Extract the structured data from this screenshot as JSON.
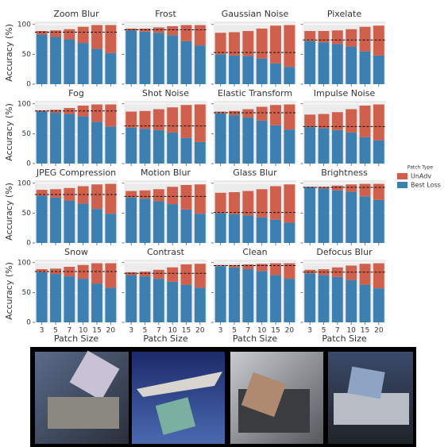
{
  "legend": {
    "title": "Patch Type"
  },
  "chart_data": [
    {
      "type": "bar",
      "title": "Zoom Blur",
      "y_label": "Accuracy (%)",
      "categories": [
        "3",
        "5",
        "7",
        "10",
        "15",
        "20"
      ],
      "series": [
        {
          "name": "Best Loss",
          "color": "#3b80b1",
          "values": [
            83,
            79,
            75,
            69,
            59,
            52
          ]
        },
        {
          "name": "UnAdv",
          "color": "#d0604b",
          "values": [
            6,
            11,
            17,
            27,
            40,
            47
          ]
        }
      ],
      "reference_line": 87,
      "ylim": [
        0,
        105
      ],
      "yticks": [
        0,
        50,
        100
      ]
    },
    {
      "type": "bar",
      "title": "Frost",
      "categories": [
        "3",
        "5",
        "7",
        "10",
        "15",
        "20"
      ],
      "series": [
        {
          "name": "Best Loss",
          "color": "#3b80b1",
          "values": [
            90,
            88,
            86,
            82,
            72,
            65
          ]
        },
        {
          "name": "UnAdv",
          "color": "#d0604b",
          "values": [
            3,
            5,
            9,
            15,
            27,
            34
          ]
        }
      ],
      "reference_line": 91,
      "ylim": [
        0,
        105
      ],
      "yticks": [
        0,
        50,
        100
      ]
    },
    {
      "type": "bar",
      "title": "Gaussian Noise",
      "categories": [
        "3",
        "5",
        "7",
        "10",
        "15",
        "20"
      ],
      "series": [
        {
          "name": "Best Loss",
          "color": "#3b80b1",
          "values": [
            50,
            48,
            47,
            43,
            35,
            29
          ]
        },
        {
          "name": "UnAdv",
          "color": "#d0604b",
          "values": [
            36,
            39,
            42,
            50,
            63,
            70
          ]
        }
      ],
      "reference_line": 53,
      "ylim": [
        0,
        105
      ],
      "yticks": [
        0,
        50,
        100
      ]
    },
    {
      "type": "bar",
      "title": "Pixelate",
      "categories": [
        "3",
        "5",
        "7",
        "10",
        "15",
        "20"
      ],
      "series": [
        {
          "name": "Best Loss",
          "color": "#3b80b1",
          "values": [
            72,
            70,
            67,
            63,
            55,
            48
          ]
        },
        {
          "name": "UnAdv",
          "color": "#d0604b",
          "values": [
            17,
            19,
            23,
            29,
            41,
            50
          ]
        }
      ],
      "reference_line": 74,
      "ylim": [
        0,
        105
      ],
      "yticks": [
        0,
        50,
        100
      ]
    },
    {
      "type": "bar",
      "title": "Fog",
      "y_label": "Accuracy (%)",
      "categories": [
        "3",
        "5",
        "7",
        "10",
        "15",
        "20"
      ],
      "series": [
        {
          "name": "Best Loss",
          "color": "#3b80b1",
          "values": [
            87,
            85,
            83,
            79,
            70,
            62
          ]
        },
        {
          "name": "UnAdv",
          "color": "#d0604b",
          "values": [
            2,
            5,
            10,
            18,
            29,
            37
          ]
        }
      ],
      "reference_line": 88,
      "ylim": [
        0,
        105
      ],
      "yticks": [
        0,
        50,
        100
      ]
    },
    {
      "type": "bar",
      "title": "Shot Noise",
      "categories": [
        "3",
        "5",
        "7",
        "10",
        "15",
        "20"
      ],
      "series": [
        {
          "name": "Best Loss",
          "color": "#3b80b1",
          "values": [
            60,
            58,
            56,
            52,
            43,
            36
          ]
        },
        {
          "name": "UnAdv",
          "color": "#d0604b",
          "values": [
            27,
            30,
            35,
            42,
            55,
            63
          ]
        }
      ],
      "reference_line": 63,
      "ylim": [
        0,
        105
      ],
      "yticks": [
        0,
        50,
        100
      ]
    },
    {
      "type": "bar",
      "title": "Elastic Transform",
      "categories": [
        "3",
        "5",
        "7",
        "10",
        "15",
        "20"
      ],
      "series": [
        {
          "name": "Best Loss",
          "color": "#3b80b1",
          "values": [
            84,
            81,
            77,
            72,
            64,
            57
          ]
        },
        {
          "name": "UnAdv",
          "color": "#d0604b",
          "values": [
            3,
            7,
            14,
            23,
            34,
            42
          ]
        }
      ],
      "reference_line": 85,
      "ylim": [
        0,
        105
      ],
      "yticks": [
        0,
        50,
        100
      ]
    },
    {
      "type": "bar",
      "title": "Impulse Noise",
      "categories": [
        "3",
        "5",
        "7",
        "10",
        "15",
        "20"
      ],
      "series": [
        {
          "name": "Best Loss",
          "color": "#3b80b1",
          "values": [
            61,
            59,
            56,
            52,
            44,
            39
          ]
        },
        {
          "name": "UnAdv",
          "color": "#d0604b",
          "values": [
            21,
            24,
            30,
            39,
            53,
            60
          ]
        }
      ],
      "reference_line": 62,
      "ylim": [
        0,
        105
      ],
      "yticks": [
        0,
        50,
        100
      ]
    },
    {
      "type": "bar",
      "title": "JPEG Compression",
      "y_label": "Accuracy (%)",
      "categories": [
        "3",
        "5",
        "7",
        "10",
        "15",
        "20"
      ],
      "series": [
        {
          "name": "Best Loss",
          "color": "#3b80b1",
          "values": [
            79,
            76,
            71,
            66,
            57,
            49
          ]
        },
        {
          "name": "UnAdv",
          "color": "#d0604b",
          "values": [
            10,
            14,
            21,
            29,
            41,
            50
          ]
        }
      ],
      "reference_line": 81,
      "ylim": [
        0,
        105
      ],
      "yticks": [
        0,
        50,
        100
      ]
    },
    {
      "type": "bar",
      "title": "Motion Blur",
      "categories": [
        "3",
        "5",
        "7",
        "10",
        "15",
        "20"
      ],
      "series": [
        {
          "name": "Best Loss",
          "color": "#3b80b1",
          "values": [
            76,
            74,
            70,
            65,
            56,
            49
          ]
        },
        {
          "name": "UnAdv",
          "color": "#d0604b",
          "values": [
            11,
            14,
            20,
            29,
            41,
            49
          ]
        }
      ],
      "reference_line": 78,
      "ylim": [
        0,
        105
      ],
      "yticks": [
        0,
        50,
        100
      ]
    },
    {
      "type": "bar",
      "title": "Glass Blur",
      "categories": [
        "3",
        "5",
        "7",
        "10",
        "15",
        "20"
      ],
      "series": [
        {
          "name": "Best Loss",
          "color": "#3b80b1",
          "values": [
            50,
            48,
            46,
            43,
            39,
            34
          ]
        },
        {
          "name": "UnAdv",
          "color": "#d0604b",
          "values": [
            34,
            37,
            41,
            47,
            56,
            64
          ]
        }
      ],
      "reference_line": 51,
      "ylim": [
        0,
        105
      ],
      "yticks": [
        0,
        50,
        100
      ]
    },
    {
      "type": "bar",
      "title": "Brightness",
      "categories": [
        "3",
        "5",
        "7",
        "10",
        "15",
        "20"
      ],
      "series": [
        {
          "name": "Best Loss",
          "color": "#3b80b1",
          "values": [
            93,
            91,
            88,
            86,
            78,
            72
          ]
        },
        {
          "name": "UnAdv",
          "color": "#d0604b",
          "values": [
            1,
            3,
            8,
            12,
            21,
            27
          ]
        }
      ],
      "reference_line": 93,
      "ylim": [
        0,
        105
      ],
      "yticks": [
        0,
        50,
        100
      ]
    },
    {
      "type": "bar",
      "title": "Snow",
      "y_label": "Accuracy (%)",
      "x_label": "Patch Size",
      "categories": [
        "3",
        "5",
        "7",
        "10",
        "15",
        "20"
      ],
      "series": [
        {
          "name": "Best Loss",
          "color": "#3b80b1",
          "values": [
            84,
            81,
            77,
            73,
            65,
            58
          ]
        },
        {
          "name": "UnAdv",
          "color": "#d0604b",
          "values": [
            5,
            9,
            16,
            23,
            34,
            41
          ]
        }
      ],
      "reference_line": 85,
      "ylim": [
        0,
        105
      ],
      "yticks": [
        0,
        50,
        100
      ]
    },
    {
      "type": "bar",
      "title": "Contrast",
      "x_label": "Patch Size",
      "categories": [
        "3",
        "5",
        "7",
        "10",
        "15",
        "20"
      ],
      "series": [
        {
          "name": "Best Loss",
          "color": "#3b80b1",
          "values": [
            79,
            77,
            73,
            68,
            63,
            58
          ]
        },
        {
          "name": "UnAdv",
          "color": "#d0604b",
          "values": [
            5,
            8,
            15,
            24,
            34,
            40
          ]
        }
      ],
      "reference_line": 82,
      "ylim": [
        0,
        105
      ],
      "yticks": [
        0,
        50,
        100
      ]
    },
    {
      "type": "bar",
      "title": "Clean",
      "x_label": "Patch Size",
      "categories": [
        "3",
        "5",
        "7",
        "10",
        "15",
        "20"
      ],
      "series": [
        {
          "name": "Best Loss",
          "color": "#3b80b1",
          "values": [
            94,
            92,
            89,
            86,
            79,
            73
          ]
        },
        {
          "name": "UnAdv",
          "color": "#d0604b",
          "values": [
            2,
            4,
            8,
            12,
            20,
            26
          ]
        }
      ],
      "reference_line": 95,
      "ylim": [
        0,
        105
      ],
      "yticks": [
        0,
        50,
        100
      ]
    },
    {
      "type": "bar",
      "title": "Defocus Blur",
      "x_label": "Patch Size",
      "categories": [
        "3",
        "5",
        "7",
        "10",
        "15",
        "20"
      ],
      "series": [
        {
          "name": "Best Loss",
          "color": "#3b80b1",
          "values": [
            82,
            79,
            76,
            71,
            63,
            57
          ]
        },
        {
          "name": "UnAdv",
          "color": "#d0604b",
          "values": [
            6,
            10,
            16,
            24,
            35,
            42
          ]
        }
      ],
      "reference_line": 84,
      "ylim": [
        0,
        105
      ],
      "yticks": [
        0,
        50,
        100
      ]
    }
  ]
}
